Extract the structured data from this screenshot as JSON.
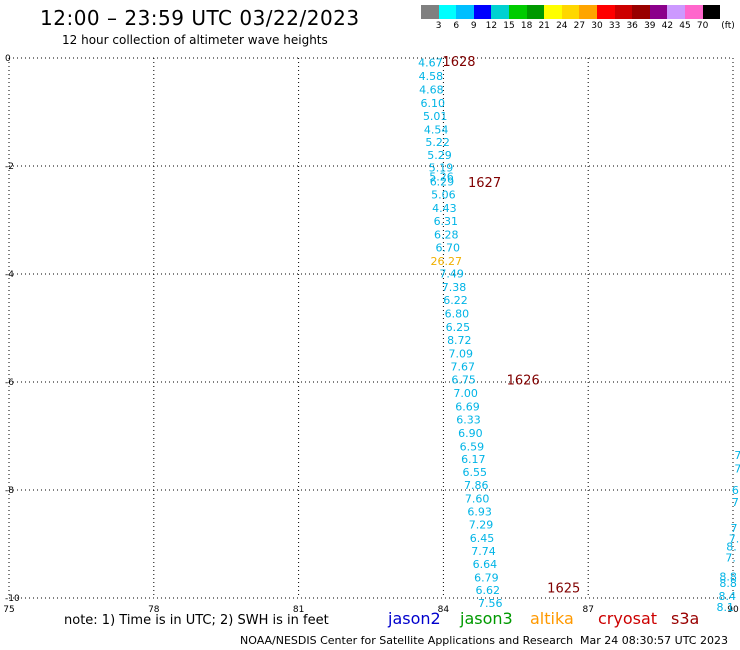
{
  "title": "12:00 – 23:59 UTC 03/22/2023",
  "subtitle": "12 hour collection of altimeter wave heights",
  "colorbar": {
    "colors": [
      "#808080",
      "#00ffff",
      "#00bfff",
      "#0000ff",
      "#00d1d1",
      "#00cc00",
      "#009900",
      "#ffff00",
      "#ffd700",
      "#ffa500",
      "#ff0000",
      "#cc0000",
      "#990000",
      "#8b008b",
      "#cc99ff",
      "#ff66cc",
      "#000000"
    ],
    "labels": [
      "3",
      "6",
      "9",
      "12",
      "15",
      "18",
      "21",
      "24",
      "27",
      "30",
      "33",
      "36",
      "39",
      "42",
      "45",
      "70"
    ],
    "unit": "(ft)"
  },
  "axes": {
    "lon_ticks": [
      "75",
      "78",
      "81",
      "84",
      "87",
      "90"
    ],
    "lat_ticks": [
      "0",
      "-2",
      "-4",
      "-6",
      "-8",
      "-10"
    ],
    "lon_range": [
      75,
      90
    ],
    "lat_range": [
      0,
      -10
    ]
  },
  "track": {
    "color": "#00b4e6",
    "highlight_color": "#f0b000",
    "points": [
      {
        "lon": 83.73,
        "lat": -0.08,
        "v": "4.67"
      },
      {
        "lon": 83.74,
        "lat": -0.33,
        "v": "4.58"
      },
      {
        "lon": 83.75,
        "lat": -0.58,
        "v": "4.68"
      },
      {
        "lon": 83.78,
        "lat": -0.83,
        "v": "6.10"
      },
      {
        "lon": 83.83,
        "lat": -1.07,
        "v": "5.01"
      },
      {
        "lon": 83.85,
        "lat": -1.32,
        "v": "4.54"
      },
      {
        "lon": 83.88,
        "lat": -1.56,
        "v": "5.22"
      },
      {
        "lon": 83.92,
        "lat": -1.8,
        "v": "5.29"
      },
      {
        "lon": 83.95,
        "lat": -2.03,
        "v": "5.19"
      },
      {
        "lon": 83.96,
        "lat": -2.19,
        "v": "5.26"
      },
      {
        "lon": 83.97,
        "lat": -2.29,
        "v": "6.29"
      },
      {
        "lon": 84.0,
        "lat": -2.53,
        "v": "5.06"
      },
      {
        "lon": 84.02,
        "lat": -2.78,
        "v": "4.43"
      },
      {
        "lon": 84.05,
        "lat": -3.02,
        "v": "6.31"
      },
      {
        "lon": 84.06,
        "lat": -3.27,
        "v": "6.28"
      },
      {
        "lon": 84.09,
        "lat": -3.51,
        "v": "6.70"
      },
      {
        "lon": 84.06,
        "lat": -3.76,
        "v": "26.27",
        "hl": true
      },
      {
        "lon": 84.17,
        "lat": -3.99,
        "v": "7.49"
      },
      {
        "lon": 84.22,
        "lat": -4.24,
        "v": "7.38"
      },
      {
        "lon": 84.25,
        "lat": -4.48,
        "v": "6.22"
      },
      {
        "lon": 84.28,
        "lat": -4.73,
        "v": "6.80"
      },
      {
        "lon": 84.3,
        "lat": -4.98,
        "v": "6.25"
      },
      {
        "lon": 84.33,
        "lat": -5.22,
        "v": "8.72"
      },
      {
        "lon": 84.36,
        "lat": -5.47,
        "v": "7.09"
      },
      {
        "lon": 84.4,
        "lat": -5.71,
        "v": "7.67"
      },
      {
        "lon": 84.42,
        "lat": -5.95,
        "v": "6.75"
      },
      {
        "lon": 84.46,
        "lat": -6.2,
        "v": "7.00"
      },
      {
        "lon": 84.5,
        "lat": -6.45,
        "v": "6.69"
      },
      {
        "lon": 84.52,
        "lat": -6.69,
        "v": "6.33"
      },
      {
        "lon": 84.56,
        "lat": -6.94,
        "v": "6.90"
      },
      {
        "lon": 84.59,
        "lat": -7.19,
        "v": "6.59"
      },
      {
        "lon": 84.62,
        "lat": -7.43,
        "v": "6.17"
      },
      {
        "lon": 84.65,
        "lat": -7.67,
        "v": "6.55"
      },
      {
        "lon": 84.68,
        "lat": -7.91,
        "v": "7.86"
      },
      {
        "lon": 84.7,
        "lat": -8.16,
        "v": "7.60"
      },
      {
        "lon": 84.75,
        "lat": -8.4,
        "v": "6.93"
      },
      {
        "lon": 84.78,
        "lat": -8.64,
        "v": "7.29"
      },
      {
        "lon": 84.8,
        "lat": -8.89,
        "v": "6.45"
      },
      {
        "lon": 84.83,
        "lat": -9.13,
        "v": "7.74"
      },
      {
        "lon": 84.86,
        "lat": -9.37,
        "v": "6.64"
      },
      {
        "lon": 84.89,
        "lat": -9.62,
        "v": "6.79"
      },
      {
        "lon": 84.92,
        "lat": -9.85,
        "v": "6.62"
      },
      {
        "lon": 84.97,
        "lat": -10.09,
        "v": "7.56"
      }
    ]
  },
  "times": [
    {
      "lon": 83.98,
      "lat": -0.06,
      "t": "1628"
    },
    {
      "lon": 84.51,
      "lat": -2.3,
      "t": "1627"
    },
    {
      "lon": 85.31,
      "lat": -5.95,
      "t": "1626"
    },
    {
      "lon": 86.15,
      "lat": -9.81,
      "t": "1625"
    }
  ],
  "time_color": "#800000",
  "right_edge": {
    "points": [
      {
        "lon": 90.1,
        "lat": -7.35,
        "v": "7"
      },
      {
        "lon": 90.1,
        "lat": -7.6,
        "v": "7"
      },
      {
        "lon": 90.05,
        "lat": -8.0,
        "v": "6"
      },
      {
        "lon": 90.05,
        "lat": -8.22,
        "v": "7"
      },
      {
        "lon": 90.02,
        "lat": -8.7,
        "v": "7"
      },
      {
        "lon": 90.02,
        "lat": -8.9,
        "v": "7."
      },
      {
        "lon": 89.97,
        "lat": -9.05,
        "v": "8."
      },
      {
        "lon": 89.95,
        "lat": -9.25,
        "v": "7."
      },
      {
        "lon": 89.9,
        "lat": -9.6,
        "v": "8.8"
      },
      {
        "lon": 89.9,
        "lat": -9.72,
        "v": "8.8"
      },
      {
        "lon": 89.88,
        "lat": -9.96,
        "v": "8.4"
      },
      {
        "lon": 89.84,
        "lat": -10.17,
        "v": "8.1"
      }
    ]
  },
  "satellites": [
    {
      "name": "jason2",
      "color": "#0000cc"
    },
    {
      "name": "jason3",
      "color": "#009900"
    },
    {
      "name": "altika",
      "color": "#ff9900"
    },
    {
      "name": "cryosat",
      "color": "#cc0000"
    },
    {
      "name": "s3a",
      "color": "#990000"
    }
  ],
  "note": "note: 1) Time is in UTC; 2) SWH is in feet",
  "credit": "NOAA/NESDIS Center for Satellite Applications and Research",
  "generated": "Mar 24 08:30:57 UTC 2023"
}
